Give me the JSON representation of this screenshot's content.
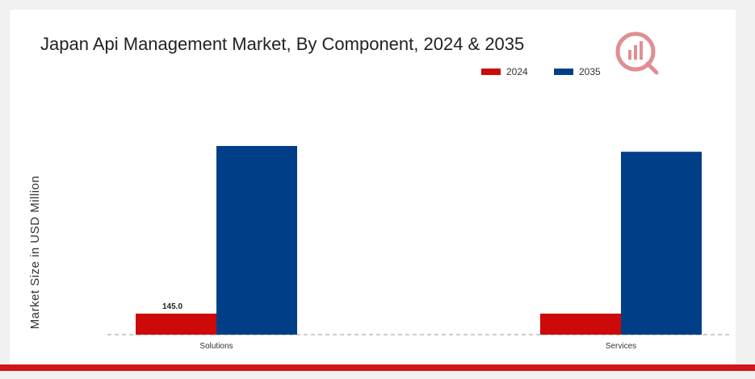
{
  "chart_data": {
    "type": "bar",
    "title": "Japan Api Management Market, By Component, 2024 & 2035",
    "xlabel": "",
    "ylabel": "Market Size in USD Million",
    "categories": [
      "Solutions",
      "Services"
    ],
    "series": [
      {
        "name": "2024",
        "color": "#cc0a0a",
        "values": [
          145.0,
          145.0
        ],
        "labels": [
          "145.0",
          ""
        ]
      },
      {
        "name": "2035",
        "color": "#003f87",
        "values": [
          1300,
          1260
        ],
        "labels": [
          "",
          ""
        ]
      }
    ],
    "ylim": [
      0,
      1500
    ],
    "grid": false,
    "legend": "top-right"
  },
  "logo": {
    "icon": "market-research-logo-icon",
    "color": "#c7323b"
  }
}
